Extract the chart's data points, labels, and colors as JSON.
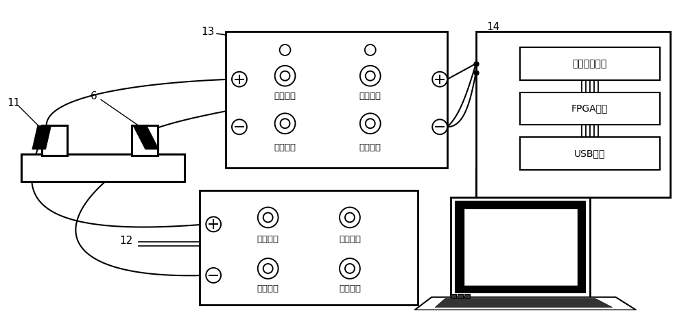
{
  "bg_color": "#ffffff",
  "line_color": "#000000",
  "label_11": "11",
  "label_6": "6",
  "label_13": "13",
  "label_12": "12",
  "label_14": "14",
  "text_zengyi_cu": "增益粗调",
  "text_zengyi_wei": "增益微调",
  "text_ditong": "低通滤波",
  "text_gaotong": "高通滤波",
  "text_maichong_fu": "脉冲幅値",
  "text_maichong_neng": "脉冲能量",
  "text_maichong_pin": "脉冲频率",
  "text_jili": "激励阻尼",
  "text_shumu": "数模转换芯片",
  "text_fpga": "FPGA芯片",
  "text_usb": "USB芯片"
}
